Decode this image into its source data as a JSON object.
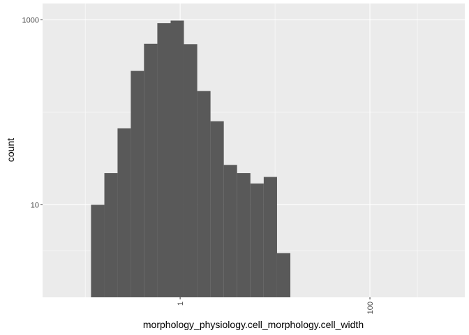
{
  "chart_data": {
    "type": "bar",
    "title": "",
    "xlabel": "morphology_physiology.cell_morphology.cell_width",
    "ylabel": "count",
    "x_scale": "log10",
    "y_scale": "log10",
    "xlim": [
      0.0355,
      1000
    ],
    "ylim": [
      1,
      1500
    ],
    "x_ticks": [
      {
        "value": 1,
        "label": "1"
      },
      {
        "value": 100,
        "label": "100"
      }
    ],
    "y_ticks": [
      {
        "value": 10,
        "label": "10"
      },
      {
        "value": 1000,
        "label": "1000"
      }
    ],
    "bins": [
      {
        "x0": 0.115,
        "x1": 0.159,
        "count": 10
      },
      {
        "x0": 0.159,
        "x1": 0.219,
        "count": 22
      },
      {
        "x0": 0.219,
        "x1": 0.302,
        "count": 67
      },
      {
        "x0": 0.302,
        "x1": 0.416,
        "count": 280
      },
      {
        "x0": 0.416,
        "x1": 0.575,
        "count": 550
      },
      {
        "x0": 0.575,
        "x1": 0.794,
        "count": 920
      },
      {
        "x0": 0.794,
        "x1": 1.096,
        "count": 980
      },
      {
        "x0": 1.096,
        "x1": 1.514,
        "count": 545
      },
      {
        "x0": 1.514,
        "x1": 2.089,
        "count": 170
      },
      {
        "x0": 2.089,
        "x1": 2.884,
        "count": 80
      },
      {
        "x0": 2.884,
        "x1": 3.98,
        "count": 27
      },
      {
        "x0": 3.98,
        "x1": 5.5,
        "count": 22
      },
      {
        "x0": 5.5,
        "x1": 7.6,
        "count": 17
      },
      {
        "x0": 7.6,
        "x1": 10.5,
        "count": 20
      },
      {
        "x0": 10.5,
        "x1": 14.5,
        "count": 3
      }
    ],
    "bar_color": "#595959",
    "panel_color": "#ebebeb",
    "grid_color": "#ffffff",
    "grid": true,
    "legend": "none"
  }
}
